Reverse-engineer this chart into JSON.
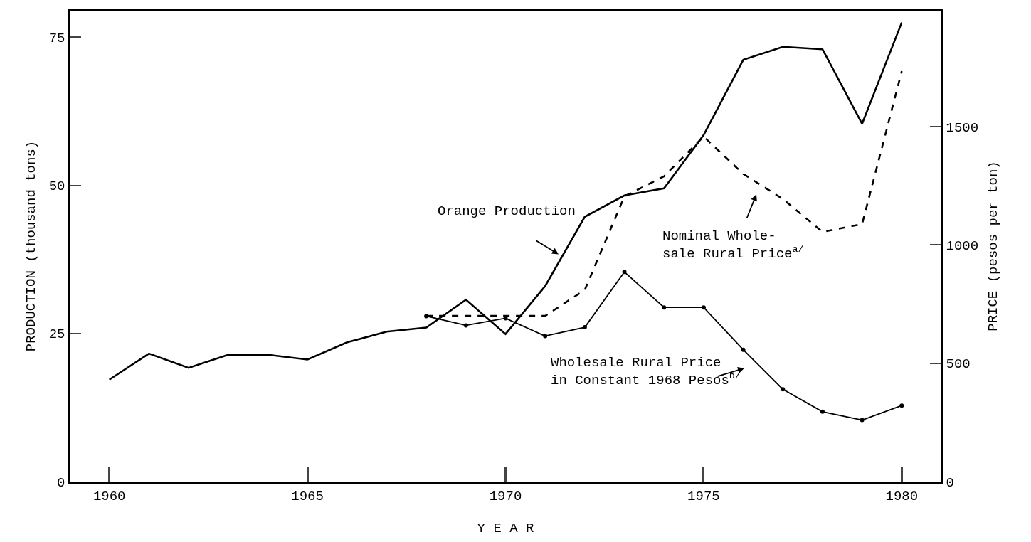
{
  "chart_data": {
    "type": "line",
    "xlabel": "Y E A R",
    "ylabel": "PRODUCTION (thousand tons)",
    "y2label": "PRICE (pesos per ton)",
    "xlim": [
      1959,
      1981
    ],
    "xticks": [
      1960,
      1965,
      1970,
      1975,
      1980
    ],
    "ylim": [
      0,
      79.5
    ],
    "yticks": [
      0,
      25,
      50,
      75
    ],
    "y2lim": [
      0,
      1990
    ],
    "y2ticks": [
      0,
      500,
      1000,
      1500
    ],
    "series": [
      {
        "color": "#000000",
        "axis": "y",
        "line_style": "solid",
        "marker": "none",
        "x": [
          1960,
          1961,
          1962,
          1963,
          1964,
          1965,
          1966,
          1967,
          1968,
          1969,
          1970,
          1971,
          1972,
          1973,
          1974,
          1975,
          1976,
          1977,
          1978,
          1979,
          1980
        ],
        "values": [
          17.2,
          21.6,
          19.2,
          21.4,
          21.4,
          20.6,
          23.5,
          25.3,
          26.0,
          30.7,
          24.9,
          33.0,
          44.7,
          48.3,
          49.5,
          58.5,
          71.2,
          73.4,
          73.0,
          60.4,
          77.5
        ]
      },
      {
        "color": "#000000",
        "axis": "y2",
        "line_style": "dashed",
        "marker": "none",
        "x": [
          1968,
          1969,
          1970,
          1971,
          1972,
          1973,
          1974,
          1975,
          1976,
          1977,
          1978,
          1979,
          1980
        ],
        "values": [
          700,
          700,
          700,
          700,
          810,
          1205,
          1290,
          1458,
          1300,
          1194,
          1055,
          1088,
          1734
        ]
      },
      {
        "color": "#000000",
        "axis": "y2",
        "line_style": "solid",
        "marker": "circle",
        "x": [
          1968,
          1969,
          1970,
          1971,
          1972,
          1973,
          1974,
          1975,
          1976,
          1977,
          1978,
          1979,
          1980
        ],
        "values": [
          699,
          660,
          690,
          615,
          652,
          886,
          736,
          736,
          557,
          390,
          295,
          260,
          321
        ]
      }
    ],
    "annotations": [
      "Orange Production",
      "Nominal Whole-\nsale Rural Price$^{a/}$",
      "Wholesale Rural Price\nin Constant 1968 Pesos$^{b/}$"
    ]
  }
}
